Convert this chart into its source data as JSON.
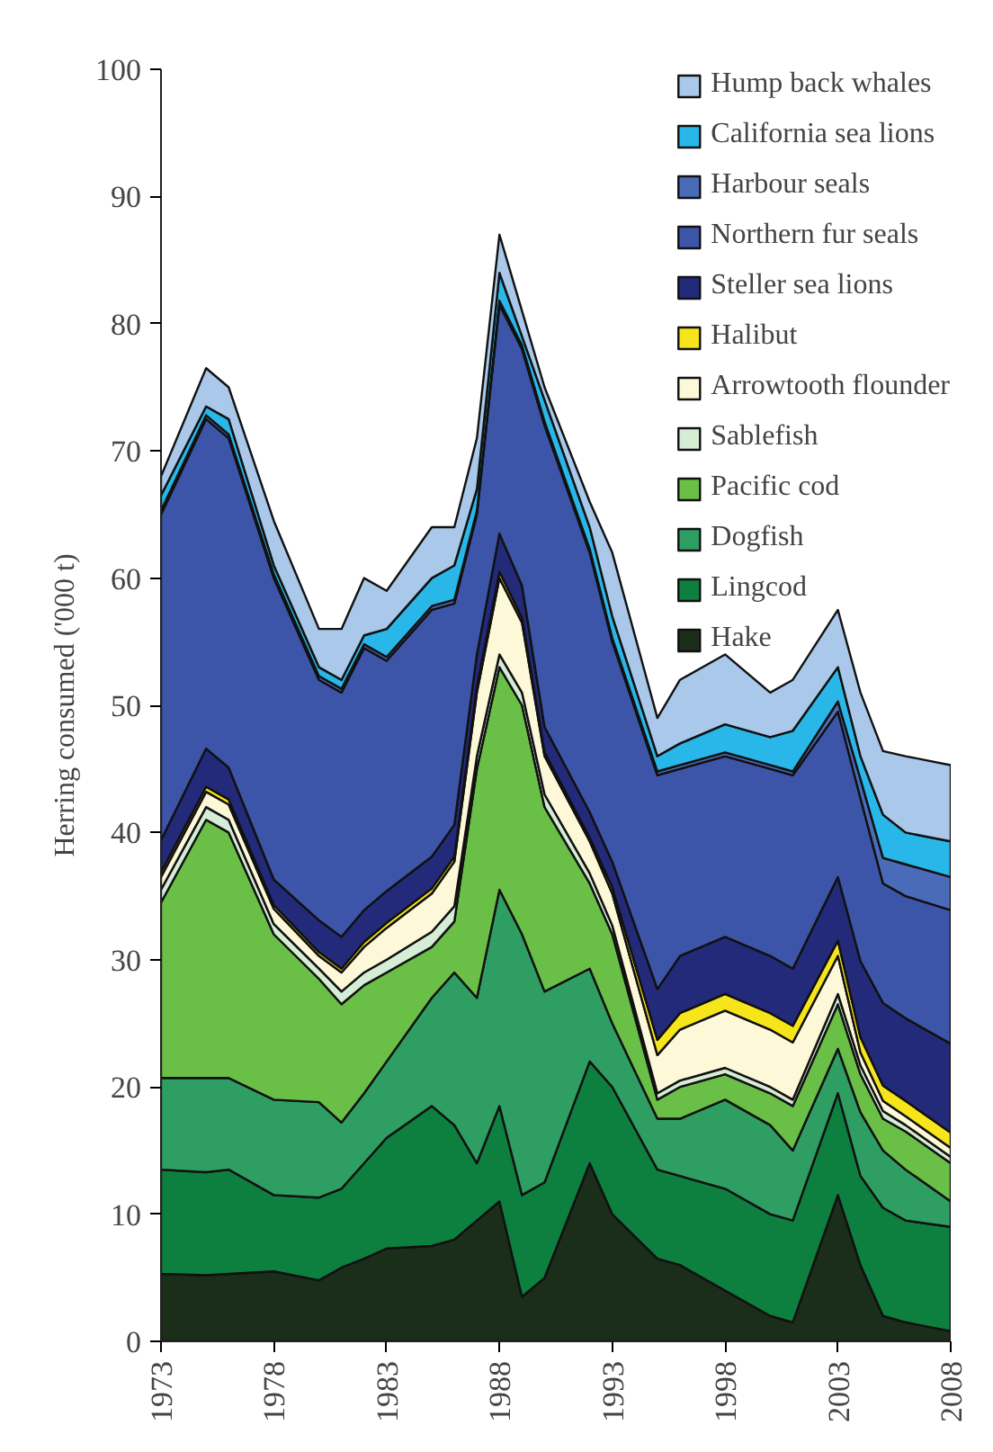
{
  "chart_data": {
    "type": "area",
    "stacked": true,
    "ylabel": "Herring consumed ('000 t)",
    "x": [
      1973,
      1975,
      1976,
      1978,
      1980,
      1981,
      1982,
      1983,
      1985,
      1986,
      1987,
      1988,
      1989,
      1990,
      1992,
      1993,
      1995,
      1996,
      1998,
      2000,
      2001,
      2003,
      2004,
      2005,
      2006,
      2008
    ],
    "xlim": [
      1973,
      2008
    ],
    "xticks": [
      1973,
      1978,
      1983,
      1988,
      1993,
      1998,
      2003,
      2008
    ],
    "ylim": [
      0,
      100
    ],
    "yticks": [
      0,
      10,
      20,
      30,
      40,
      50,
      60,
      70,
      80,
      90,
      100
    ],
    "legend": "top right",
    "series": [
      {
        "name": "Hake",
        "color": "#1a2e1a",
        "values": [
          5.3,
          5.2,
          5.3,
          5.5,
          4.8,
          5.8,
          6.5,
          7.3,
          7.5,
          8,
          9.5,
          11,
          3.5,
          5,
          14,
          10,
          6.5,
          6,
          4,
          2,
          1.5,
          11.5,
          6,
          2,
          1.5,
          0.8
        ]
      },
      {
        "name": "Lingcod",
        "color": "#0d7f3f",
        "values": [
          8.2,
          8.1,
          8.2,
          6,
          6.5,
          6.2,
          7.5,
          8.7,
          11,
          9,
          4.5,
          7.5,
          8,
          7.5,
          8,
          10,
          7,
          7,
          8,
          8,
          8,
          8,
          7,
          8.5,
          8,
          8.2
        ]
      },
      {
        "name": "Dogfish",
        "color": "#2e9e62",
        "values": [
          7.2,
          7.4,
          7.2,
          7.5,
          7.5,
          5.2,
          5.5,
          6,
          8.5,
          12,
          13,
          17,
          20.5,
          15,
          7.3,
          5,
          4,
          4.5,
          7,
          7,
          5.5,
          3.5,
          5,
          4.5,
          4,
          2
        ]
      },
      {
        "name": "Pacific cod",
        "color": "#6abf46",
        "values": [
          13.8,
          20.3,
          19.3,
          13,
          9.7,
          9.3,
          8.5,
          7,
          4,
          4,
          18,
          17.5,
          18,
          14.5,
          6.7,
          7,
          1.5,
          2.5,
          2,
          2.5,
          3.5,
          3.5,
          3,
          2.5,
          3,
          3
        ]
      },
      {
        "name": "Sablefish",
        "color": "#d5ecd5",
        "values": [
          1,
          1,
          1,
          0.8,
          0.8,
          1,
          1,
          1,
          1.2,
          1.2,
          1,
          1,
          1,
          1,
          0.8,
          0.7,
          0.5,
          0.5,
          0.5,
          0.5,
          0.5,
          0.8,
          0.7,
          0.6,
          0.5,
          0.5
        ]
      },
      {
        "name": "Arrowtooth flounder",
        "color": "#fdf8d8",
        "values": [
          1,
          1.2,
          1.2,
          1.2,
          1,
          1.5,
          2,
          2.5,
          3,
          3.5,
          5,
          6,
          5.5,
          3,
          2.5,
          2.5,
          3,
          4,
          4.5,
          4.5,
          4.5,
          3,
          1,
          0.8,
          0.7,
          0.7
        ]
      },
      {
        "name": "Halibut",
        "color": "#f5e51a",
        "values": [
          0.4,
          0.4,
          0.4,
          0.3,
          0.3,
          0.3,
          0.4,
          0.4,
          0.4,
          0.4,
          0.5,
          0.5,
          0.4,
          0.3,
          0.3,
          0.5,
          1.2,
          1.3,
          1.3,
          1.3,
          1.3,
          1.2,
          1.2,
          1.2,
          1.2,
          1.2
        ]
      },
      {
        "name": "Steller sea lions",
        "color": "#232a7a",
        "values": [
          2.5,
          3,
          2.5,
          2,
          2.5,
          2.5,
          2.5,
          2.5,
          2.5,
          2.5,
          2.5,
          3,
          2.5,
          2,
          2,
          2,
          4,
          4.5,
          4.5,
          4.5,
          4.5,
          5,
          6,
          6.5,
          6.5,
          7
        ]
      },
      {
        "name": "Northern fur seals",
        "color": "#3c55a8",
        "values": [
          25.6,
          25.9,
          25.9,
          23.7,
          18.9,
          19.2,
          20.6,
          18.1,
          19.4,
          17.4,
          11,
          18,
          18.6,
          23.7,
          20.4,
          17.3,
          16.8,
          14.7,
          14.2,
          14.7,
          15.2,
          13,
          12.8,
          9.4,
          9.6,
          10.5
        ]
      },
      {
        "name": "Harbour seals",
        "color": "#4a6cb8",
        "values": [
          0.3,
          0.3,
          0.3,
          0.3,
          0.3,
          0.3,
          0.3,
          0.3,
          0.3,
          0.3,
          0.3,
          0.3,
          0.3,
          0.3,
          0.3,
          0.3,
          0.3,
          0.3,
          0.3,
          0.3,
          0.3,
          0.8,
          1.5,
          2,
          2.5,
          2.6
        ]
      },
      {
        "name": "California sea lions",
        "color": "#29b6e8",
        "values": [
          1.2,
          0.7,
          1.2,
          0.7,
          0.7,
          0.7,
          0.7,
          2.2,
          2.2,
          2.7,
          1.7,
          2.2,
          0.7,
          1.7,
          1.7,
          1.7,
          1.2,
          1.7,
          2.2,
          2.2,
          3.2,
          2.7,
          1.8,
          3.4,
          2.5,
          2.8
        ]
      },
      {
        "name": "Hump back whales",
        "color": "#a9c8ea",
        "values": [
          1.5,
          3,
          2.5,
          3.5,
          3,
          4,
          4.5,
          3,
          4,
          3,
          4,
          3,
          2,
          1,
          2,
          5,
          3,
          5,
          5.5,
          3.5,
          4,
          4.5,
          5,
          5,
          6,
          6
        ]
      }
    ]
  }
}
